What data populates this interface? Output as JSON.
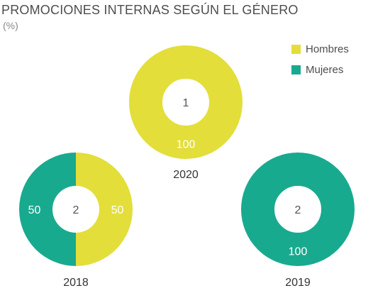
{
  "chart_data": {
    "type": "pie",
    "title": "PROMOCIONES INTERNAS SEGÚN EL GÉNERO",
    "subtitle": "(%)",
    "legend": {
      "placement": "top-right",
      "entries": [
        {
          "name": "Hombres",
          "color": "#e3de3a"
        },
        {
          "name": "Mujeres",
          "color": "#18aa8f"
        }
      ]
    },
    "charts": [
      {
        "year": "2020",
        "center_value": "1",
        "slices": [
          {
            "name": "Hombres",
            "value": 100,
            "label": "100"
          },
          {
            "name": "Mujeres",
            "value": 0,
            "label": ""
          }
        ]
      },
      {
        "year": "2018",
        "center_value": "2",
        "slices": [
          {
            "name": "Hombres",
            "value": 50,
            "label": "50"
          },
          {
            "name": "Mujeres",
            "value": 50,
            "label": "50"
          }
        ]
      },
      {
        "year": "2019",
        "center_value": "2",
        "slices": [
          {
            "name": "Hombres",
            "value": 0,
            "label": ""
          },
          {
            "name": "Mujeres",
            "value": 100,
            "label": "100"
          }
        ]
      }
    ]
  }
}
